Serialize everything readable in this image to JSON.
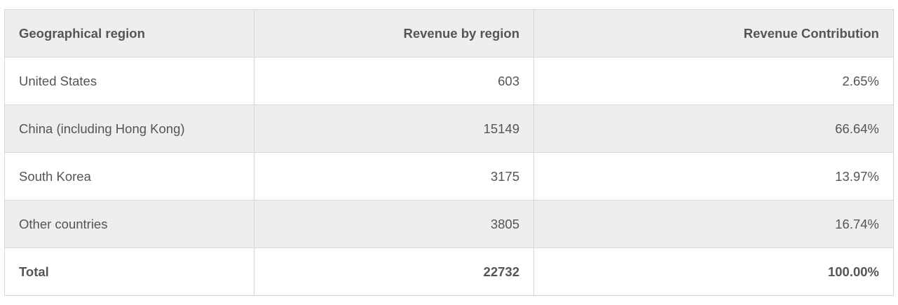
{
  "table": {
    "headers": [
      "Geographical region",
      "Revenue by region",
      "Revenue Contribution"
    ],
    "rows": [
      [
        "United States",
        "603",
        "2.65%"
      ],
      [
        "China (including Hong Kong)",
        "15149",
        "66.64%"
      ],
      [
        "South Korea",
        "3175",
        "13.97%"
      ],
      [
        "Other countries",
        "3805",
        "16.74%"
      ]
    ],
    "total": [
      "Total",
      "22732",
      "100.00%"
    ]
  },
  "colors": {
    "header_bg": "#eeeeee",
    "stripe_bg": "#eeeeee",
    "border": "#d6d6d6",
    "text": "#555555"
  }
}
